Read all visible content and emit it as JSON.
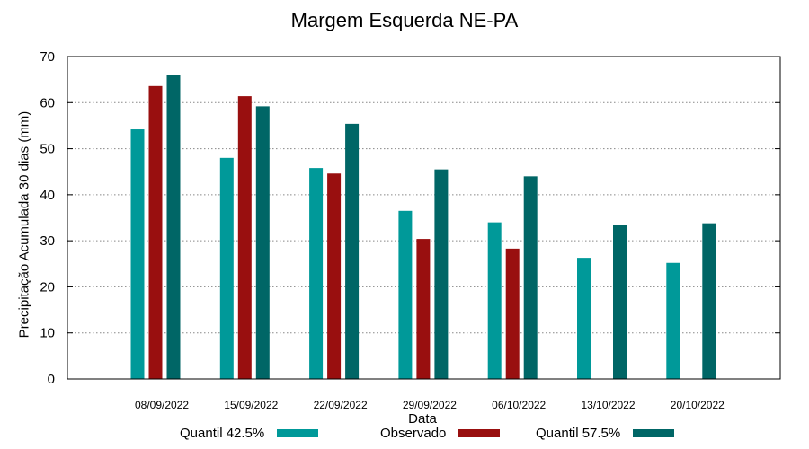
{
  "chart_data": {
    "type": "bar",
    "title": "Margem Esquerda NE-PA",
    "xlabel": "Data",
    "ylabel": "Precipitação Acumulada 30 dias (mm)",
    "ylim": [
      0,
      70
    ],
    "yticks": [
      0,
      10,
      20,
      30,
      40,
      50,
      60,
      70
    ],
    "grid": true,
    "categories": [
      "08/09/2022",
      "15/09/2022",
      "22/09/2022",
      "29/09/2022",
      "06/10/2022",
      "13/10/2022",
      "20/10/2022"
    ],
    "series": [
      {
        "name": "Quantil 42.5%",
        "color": "#009999",
        "values": [
          54.2,
          48.0,
          45.8,
          36.5,
          34.0,
          26.3,
          25.2
        ]
      },
      {
        "name": "Observado",
        "color": "#990f0f",
        "values": [
          63.6,
          61.4,
          44.6,
          30.4,
          28.3,
          null,
          null
        ]
      },
      {
        "name": "Quantil 57.5%",
        "color": "#006666",
        "values": [
          66.1,
          59.2,
          55.4,
          45.5,
          44.0,
          33.5,
          33.8
        ]
      }
    ],
    "legend_position": "bottom"
  }
}
